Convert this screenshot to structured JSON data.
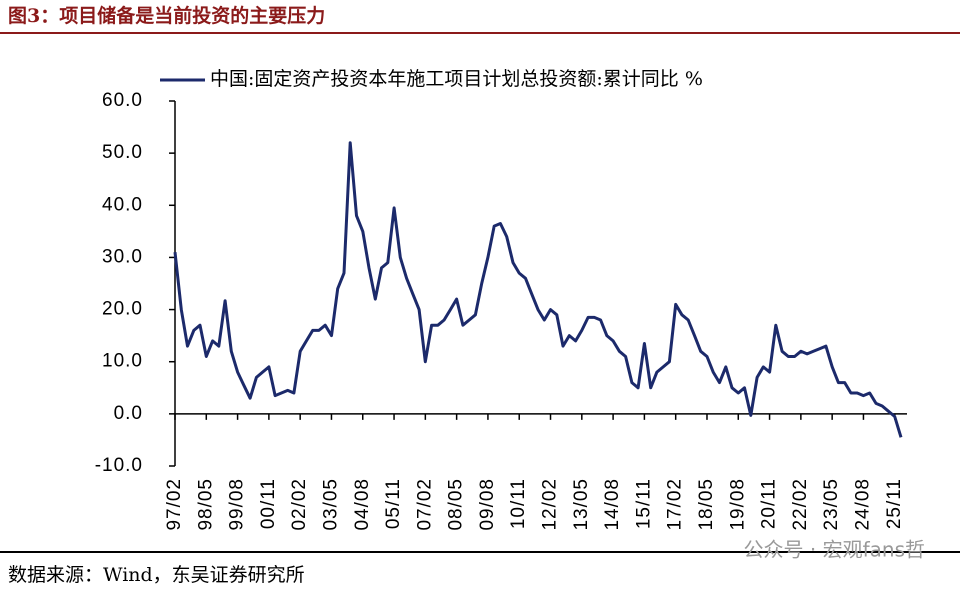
{
  "chart_data": {
    "type": "line",
    "title": "图3：项目储备是当前投资的主要压力",
    "source": "数据来源：Wind，东吴证券研究所",
    "watermark": "公众号 · 宏观fans哲",
    "categories": [
      "97/02",
      null,
      null,
      null,
      null,
      "98/05",
      null,
      null,
      null,
      null,
      "99/08",
      null,
      null,
      null,
      null,
      "00/11",
      null,
      null,
      null,
      null,
      "02/02",
      null,
      null,
      null,
      null,
      "03/05",
      null,
      null,
      null,
      null,
      "04/08",
      null,
      null,
      null,
      null,
      "05/11",
      null,
      null,
      null,
      null,
      "07/02",
      null,
      null,
      null,
      null,
      "08/05",
      null,
      null,
      null,
      null,
      "09/08",
      null,
      null,
      null,
      null,
      "10/11",
      null,
      null,
      null,
      null,
      "12/02",
      null,
      null,
      null,
      null,
      "13/05",
      null,
      null,
      null,
      null,
      "14/08",
      null,
      null,
      null,
      null,
      "15/11",
      null,
      null,
      null,
      null,
      "17/02",
      null,
      null,
      null,
      null,
      "18/05",
      null,
      null,
      null,
      null,
      "19/08",
      null,
      null,
      null,
      null,
      "20/11",
      null,
      null,
      null,
      null,
      "22/02",
      null,
      null,
      null,
      null,
      "23/05",
      null,
      null,
      null,
      null,
      "24/08",
      null,
      null,
      null,
      null,
      "25/11",
      null
    ],
    "series": [
      {
        "name": "中国:固定资产投资本年施工项目计划总投资额:累计同比 %",
        "color": "#1c2a6b",
        "values": [
          31,
          20,
          13,
          16,
          17,
          11,
          14,
          13,
          21.7,
          12,
          8,
          5.5,
          3,
          7,
          8,
          9,
          3.5,
          4,
          4.5,
          4,
          12,
          14,
          16,
          16,
          17,
          15,
          24,
          27,
          52,
          38,
          35,
          28,
          22,
          28,
          29,
          39.5,
          30,
          26,
          23,
          20,
          10,
          17,
          17,
          18,
          20,
          22,
          17,
          18,
          19,
          25,
          30,
          36,
          36.5,
          34,
          29,
          27,
          26,
          23,
          20,
          18,
          20,
          19,
          13,
          15,
          14,
          16,
          18.5,
          18.5,
          18,
          15,
          14,
          12,
          11,
          6,
          5,
          13.5,
          5,
          8,
          9,
          10,
          21,
          19,
          18,
          15,
          12,
          11,
          8,
          6,
          9,
          5,
          4,
          5,
          -0.3,
          7,
          9,
          8,
          17,
          12,
          11,
          11,
          12,
          11.5,
          12,
          12.5,
          13,
          9,
          6,
          6,
          4,
          4,
          3.5,
          4,
          2,
          1.5,
          0.5,
          -0.5,
          -4.5
        ]
      }
    ],
    "ylim": [
      -10,
      60
    ],
    "yticks": [
      {
        "value": -10,
        "label": "-10.0"
      },
      {
        "value": 0,
        "label": "0.0"
      },
      {
        "value": 10,
        "label": "10.0"
      },
      {
        "value": 20,
        "label": "20.0"
      },
      {
        "value": 30,
        "label": "30.0"
      },
      {
        "value": 40,
        "label": "40.0"
      },
      {
        "value": 50,
        "label": "50.0"
      },
      {
        "value": 60,
        "label": "60.0"
      }
    ],
    "legend": "top"
  }
}
